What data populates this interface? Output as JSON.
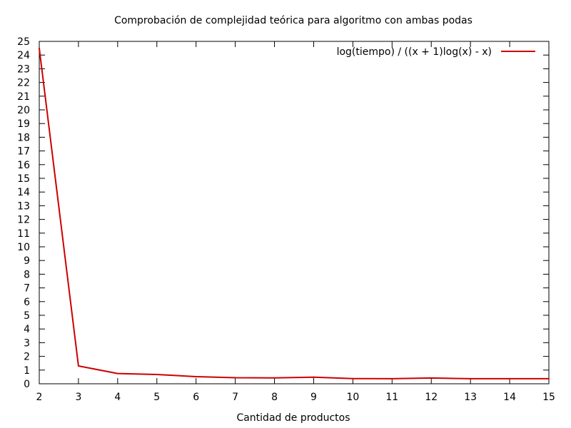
{
  "chart_data": {
    "type": "line",
    "title": "Comprobación de complejidad teórica para algoritmo con ambas podas",
    "xlabel": "Cantidad de productos",
    "ylabel": "",
    "xlim": [
      2,
      15
    ],
    "ylim": [
      0,
      25
    ],
    "x_ticks": [
      "2",
      "3",
      "4",
      "5",
      "6",
      "7",
      "8",
      "9",
      "10",
      "11",
      "12",
      "13",
      "14",
      "15"
    ],
    "y_ticks": [
      "0",
      "1",
      "2",
      "3",
      "4",
      "5",
      "6",
      "7",
      "8",
      "9",
      "10",
      "11",
      "12",
      "13",
      "14",
      "15",
      "16",
      "17",
      "18",
      "19",
      "20",
      "21",
      "22",
      "23",
      "24",
      "25"
    ],
    "grid": false,
    "legend_position": "top-right",
    "series": [
      {
        "name": "log(tiempo) / ((x + 1)log(x) - x)",
        "color": "#cc0000",
        "x": [
          2,
          3,
          4,
          5,
          6,
          7,
          8,
          9,
          10,
          11,
          12,
          13,
          14,
          15
        ],
        "values": [
          24.5,
          1.3,
          0.75,
          0.68,
          0.52,
          0.44,
          0.43,
          0.48,
          0.38,
          0.37,
          0.42,
          0.37,
          0.37,
          0.37
        ]
      }
    ]
  }
}
